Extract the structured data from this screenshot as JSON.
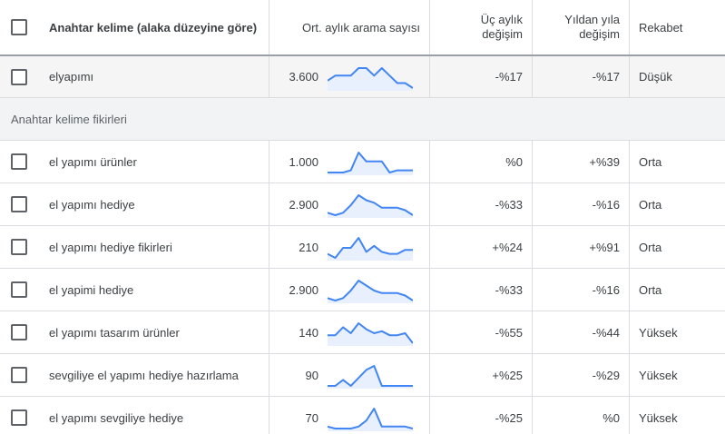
{
  "header": {
    "keyword": "Anahtar kelime (alaka düzeyine göre)",
    "volume": "Ort. aylık arama sayısı",
    "quarter_line1": "Üç aylık",
    "quarter_line2": "değişim",
    "yoy_line1": "Yıldan yıla",
    "yoy_line2": "değişim",
    "competition": "Rekabet"
  },
  "seed": {
    "keyword": "elyapımı",
    "volume": "3.600",
    "trend": [
      3,
      5,
      5,
      5,
      8,
      8,
      5,
      8,
      5,
      2,
      2,
      0
    ],
    "quarter": "-%17",
    "yoy": "-%17",
    "competition": "Düşük"
  },
  "group_label": "Anahtar kelime fikirleri",
  "rows": [
    {
      "keyword": "el yapımı ürünler",
      "volume": "1.000",
      "trend": [
        0,
        0,
        0,
        1,
        9,
        5,
        5,
        5,
        0,
        1,
        1,
        1
      ],
      "quarter": "%0",
      "yoy": "+%39",
      "competition": "Orta"
    },
    {
      "keyword": "el yapımı hediye",
      "volume": "2.900",
      "trend": [
        1,
        0,
        1,
        4,
        8,
        6,
        5,
        3,
        3,
        3,
        2,
        0
      ],
      "quarter": "-%33",
      "yoy": "-%16",
      "competition": "Orta"
    },
    {
      "keyword": "el yapımı hediye fikirleri",
      "volume": "210",
      "trend": [
        2,
        0,
        5,
        5,
        10,
        3,
        6,
        3,
        2,
        2,
        4,
        4
      ],
      "quarter": "+%24",
      "yoy": "+%91",
      "competition": "Orta"
    },
    {
      "keyword": "el yapimi hediye",
      "volume": "2.900",
      "trend": [
        1,
        0,
        1,
        4,
        8,
        6,
        4,
        3,
        3,
        3,
        2,
        0
      ],
      "quarter": "-%33",
      "yoy": "-%16",
      "competition": "Orta"
    },
    {
      "keyword": "el yapımı tasarım ürünler",
      "volume": "140",
      "trend": [
        4,
        4,
        8,
        5,
        10,
        7,
        5,
        6,
        4,
        4,
        5,
        0
      ],
      "quarter": "-%55",
      "yoy": "-%44",
      "competition": "Yüksek"
    },
    {
      "keyword": "sevgiliye el yapımı hediye hazırlama",
      "volume": "90",
      "trend": [
        0,
        0,
        3,
        0,
        4,
        8,
        10,
        0,
        0,
        0,
        0,
        0
      ],
      "quarter": "+%25",
      "yoy": "-%29",
      "competition": "Yüksek"
    },
    {
      "keyword": "el yapımı sevgiliye hediye",
      "volume": "70",
      "trend": [
        1,
        0,
        0,
        0,
        1,
        4,
        10,
        1,
        1,
        1,
        1,
        0
      ],
      "quarter": "-%25",
      "yoy": "%0",
      "competition": "Yüksek"
    }
  ],
  "colors": {
    "trend_line": "#4285f4",
    "trend_fill": "#e8f0fe"
  }
}
